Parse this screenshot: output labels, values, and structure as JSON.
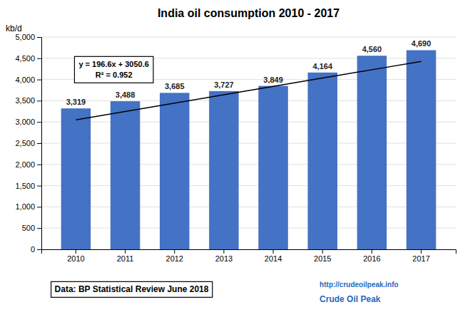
{
  "chart_data": {
    "type": "bar",
    "title": "India oil consumption  2010 - 2017",
    "y_label": "kb/d",
    "categories": [
      "2010",
      "2011",
      "2012",
      "2013",
      "2014",
      "2015",
      "2016",
      "2017"
    ],
    "series": [
      {
        "type": "bar",
        "color": "#4472C4",
        "data_labels": true,
        "values": [
          3319,
          3488,
          3685,
          3727,
          3849,
          4164,
          4560,
          4690
        ],
        "value_labels": [
          "3,319",
          "3,488",
          "3,685",
          "3,727",
          "3,849",
          "4,164",
          "4,560",
          "4,690"
        ]
      },
      {
        "type": "line",
        "color": "#000000",
        "values": [
          3050.6,
          3247.2,
          3443.8,
          3640.4,
          3837,
          4033.6,
          4230.2,
          4426.8
        ]
      }
    ],
    "ylim": [
      0,
      5000
    ],
    "yticks": [
      0,
      500,
      {
        "value": 1000,
        "label": "1,000"
      },
      {
        "value": 1500,
        "label": "1,500"
      },
      {
        "value": 2000,
        "label": "2,000"
      },
      {
        "value": 2500,
        "label": "2,500"
      },
      {
        "value": 3000,
        "label": "3,000"
      },
      {
        "value": 3500,
        "label": "3,500"
      },
      {
        "value": 4000,
        "label": "4,000"
      },
      {
        "value": 4500,
        "label": "4,500"
      },
      {
        "value": 5000,
        "label": "5,000"
      }
    ],
    "grid": true,
    "annotations": [
      "y = 196.6x + 3050.6",
      "R² = 0.952",
      "Data: BP Statistical Review June 2018",
      "http://crudeoilpeak.info",
      "Crude Oil Peak"
    ]
  }
}
